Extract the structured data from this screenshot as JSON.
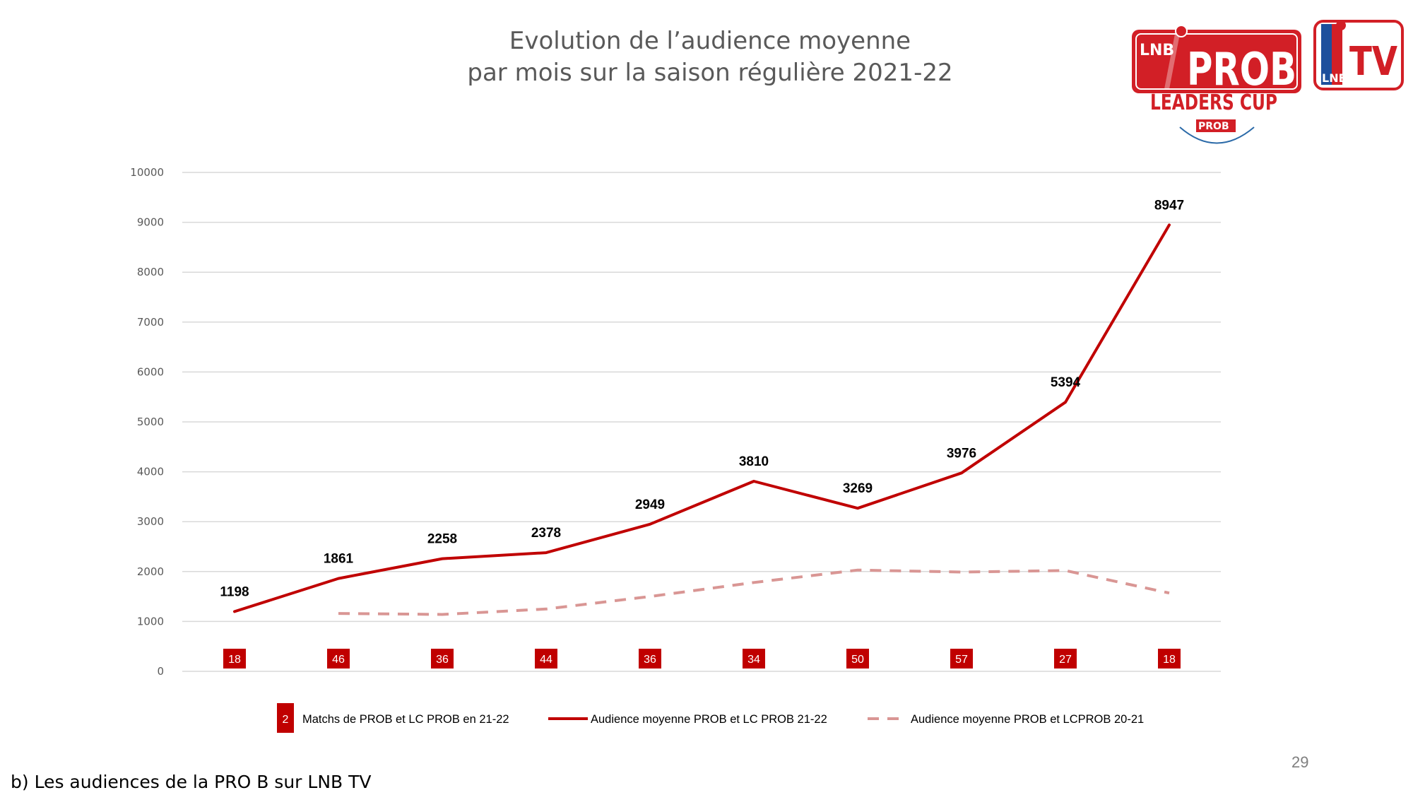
{
  "title": {
    "line1": "Evolution de l’audience moyenne",
    "line2": "par mois sur la saison régulière 2021-22"
  },
  "caption": "b) Les audiences de la PRO B sur LNB TV",
  "page_number": "29",
  "logos": {
    "prob": {
      "top_text": "LNB",
      "main_text": "PROB",
      "sub_text": "LEADERS CUP",
      "badge_text": "PROB"
    },
    "lnbtv": {
      "main_text": "TV",
      "badge_text": "LNB"
    }
  },
  "colors": {
    "series_current": "#c00000",
    "series_previous": "#d99694",
    "match_badge": "#c00000",
    "grid": "#d9d9d9",
    "axis_text": "#595959"
  },
  "chart_data": {
    "type": "line",
    "ylim": [
      0,
      10000
    ],
    "yticks": [
      0,
      1000,
      2000,
      3000,
      4000,
      5000,
      6000,
      7000,
      8000,
      9000,
      10000
    ],
    "grid": true,
    "legend_position": "bottom",
    "series": [
      {
        "name": "Audience moyenne PROB et LC PROB 21-22",
        "style": "solid",
        "values": [
          1198,
          1861,
          2258,
          2378,
          2949,
          3810,
          3269,
          3976,
          5394,
          8947
        ],
        "labels": [
          "1198",
          "1861",
          "2258",
          "2378",
          "2949",
          "3810",
          "3269",
          "3976",
          "5394",
          "8947"
        ]
      },
      {
        "name": "Audience moyenne PROB et LCPROB 20-21",
        "style": "dashed",
        "values": [
          null,
          1160,
          1140,
          1250,
          1500,
          1780,
          2030,
          1990,
          2020,
          1570
        ]
      }
    ],
    "matches": {
      "name": "Matchs de PROB et LC PROB en 21-22",
      "legend_sample": "2",
      "values": [
        18,
        46,
        36,
        44,
        36,
        34,
        50,
        57,
        27,
        18
      ]
    }
  }
}
